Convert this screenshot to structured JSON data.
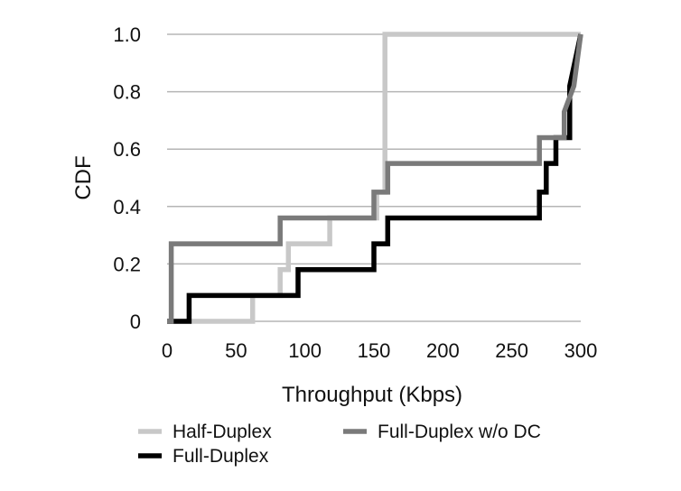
{
  "chart_data": {
    "type": "line",
    "step": true,
    "xlabel": "Throughput (Kbps)",
    "ylabel": "CDF",
    "xlim": [
      0,
      300
    ],
    "ylim": [
      0,
      1
    ],
    "x_ticks": [
      "0",
      "50",
      "100",
      "150",
      "200",
      "250",
      "300"
    ],
    "y_ticks": [
      "0",
      "0.2",
      "0.4",
      "0.6",
      "0.8",
      "1.0"
    ],
    "grid": "horizontal",
    "legend": "bottom",
    "series": [
      {
        "name": "Half-Duplex",
        "color": "#c8c8c8",
        "points": [
          [
            0,
            0
          ],
          [
            62,
            0
          ],
          [
            62,
            0.09
          ],
          [
            82,
            0.09
          ],
          [
            82,
            0.18
          ],
          [
            88,
            0.18
          ],
          [
            88,
            0.27
          ],
          [
            118,
            0.27
          ],
          [
            118,
            0.36
          ],
          [
            152,
            0.36
          ],
          [
            152,
            0.45
          ],
          [
            158,
            0.45
          ],
          [
            158,
            1.0
          ],
          [
            300,
            1.0
          ]
        ]
      },
      {
        "name": "Full-Duplex",
        "color": "#000000",
        "points": [
          [
            0,
            0
          ],
          [
            16,
            0
          ],
          [
            16,
            0.09
          ],
          [
            20,
            0.09
          ],
          [
            20,
            0.09
          ],
          [
            80,
            0.09
          ],
          [
            80,
            0.09
          ],
          [
            95,
            0.09
          ],
          [
            95,
            0.18
          ],
          [
            103,
            0.18
          ],
          [
            103,
            0.18
          ],
          [
            150,
            0.18
          ],
          [
            150,
            0.27
          ],
          [
            155,
            0.27
          ],
          [
            155,
            0.27
          ],
          [
            160,
            0.27
          ],
          [
            160,
            0.36
          ],
          [
            270,
            0.36
          ],
          [
            270,
            0.45
          ],
          [
            275,
            0.45
          ],
          [
            275,
            0.55
          ],
          [
            282,
            0.55
          ],
          [
            282,
            0.64
          ],
          [
            292,
            0.64
          ],
          [
            292,
            0.82
          ],
          [
            300,
            1.0
          ]
        ]
      },
      {
        "name": "Full-Duplex w/o DC",
        "color": "#7a7a7a",
        "points": [
          [
            0,
            0
          ],
          [
            3,
            0
          ],
          [
            3,
            0.27
          ],
          [
            82,
            0.27
          ],
          [
            82,
            0.36
          ],
          [
            150,
            0.36
          ],
          [
            150,
            0.45
          ],
          [
            160,
            0.45
          ],
          [
            160,
            0.55
          ],
          [
            270,
            0.55
          ],
          [
            270,
            0.64
          ],
          [
            280,
            0.64
          ],
          [
            280,
            0.64
          ],
          [
            288,
            0.64
          ],
          [
            288,
            0.73
          ],
          [
            295,
            0.82
          ],
          [
            300,
            1.0
          ]
        ]
      }
    ]
  }
}
